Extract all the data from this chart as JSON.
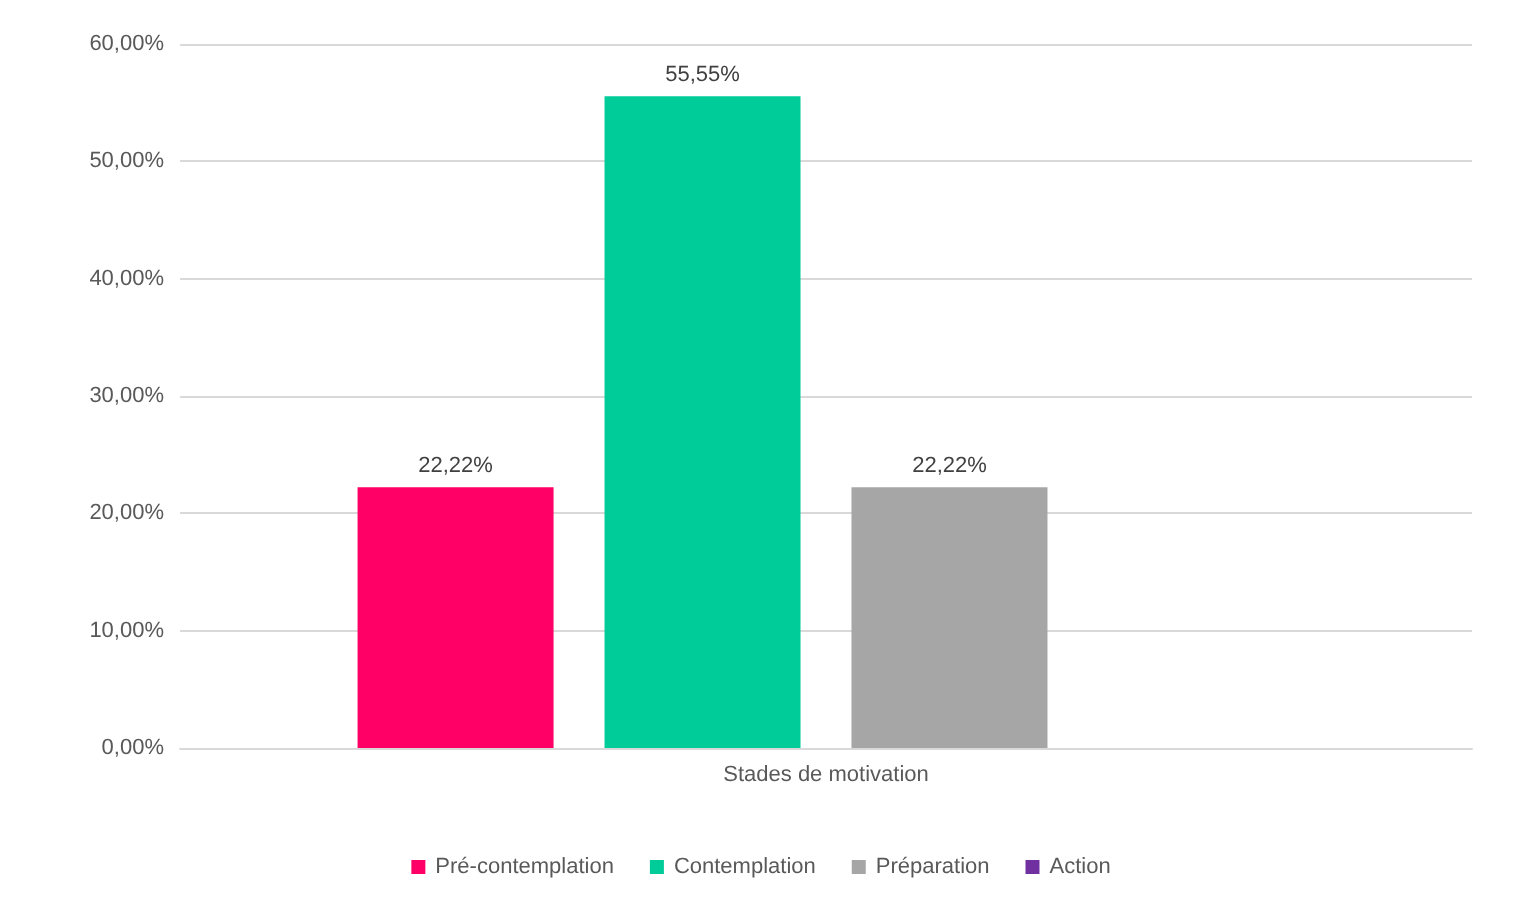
{
  "chart_data": {
    "type": "bar",
    "categories": [
      "Stades de motivation"
    ],
    "series": [
      {
        "name": "Pré-contemplation",
        "color": "#ff0066",
        "values": [
          22.22
        ],
        "value_labels": [
          "22,22%"
        ]
      },
      {
        "name": "Contemplation",
        "color": "#00cc99",
        "values": [
          55.55
        ],
        "value_labels": [
          "55,55%"
        ]
      },
      {
        "name": "Préparation",
        "color": "#a6a6a6",
        "values": [
          22.22
        ],
        "value_labels": [
          "22,22%"
        ]
      },
      {
        "name": "Action",
        "color": "#7030a0",
        "values": [
          null
        ],
        "value_labels": [
          null
        ]
      }
    ],
    "ylim": [
      0,
      60
    ],
    "yticks": [
      {
        "value": 0,
        "label": "0,00%"
      },
      {
        "value": 10,
        "label": "10,00%"
      },
      {
        "value": 20,
        "label": "20,00%"
      },
      {
        "value": 30,
        "label": "30,00%"
      },
      {
        "value": 40,
        "label": "40,00%"
      },
      {
        "value": 50,
        "label": "50,00%"
      },
      {
        "value": 60,
        "label": "60,00%"
      }
    ],
    "grid": "y",
    "legend": "bottom"
  }
}
